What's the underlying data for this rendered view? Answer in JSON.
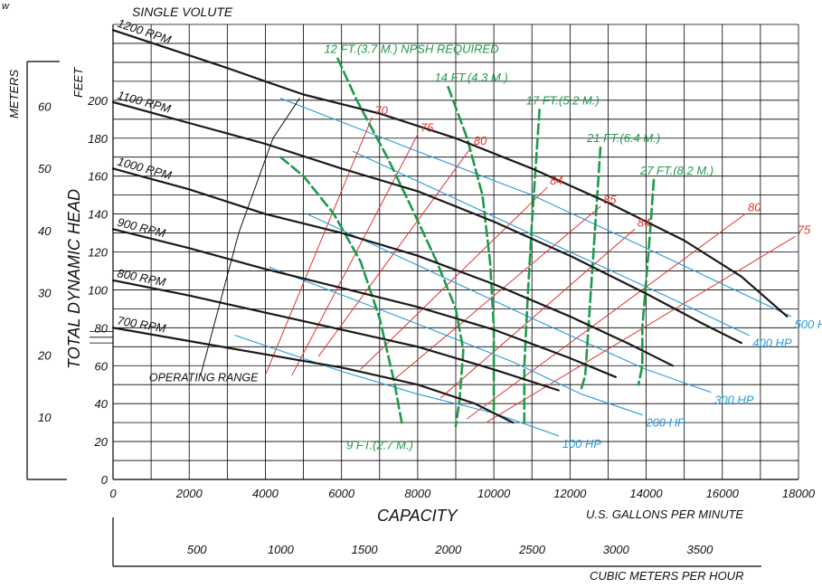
{
  "chart_data": {
    "type": "line",
    "title": "SINGLE VOLUTE",
    "corner_label": "W",
    "xlabel": "CAPACITY",
    "xunit": "U.S. GALLONS PER MINUTE",
    "ylabel": "TOTAL DYNAMIC HEAD",
    "yunit": "FEET",
    "y2unit": "METERS",
    "x2unit": "CUBIC METERS PER HOUR",
    "xlim": [
      0,
      18000
    ],
    "ylim": [
      0,
      240
    ],
    "grid": true,
    "xticks": [
      "0",
      "2000",
      "4000",
      "6000",
      "8000",
      "10000",
      "12000",
      "14000",
      "16000",
      "18000"
    ],
    "yticks": [
      "0",
      "20",
      "40",
      "60",
      "80",
      "100",
      "120",
      "140",
      "160",
      "180",
      "200"
    ],
    "meter_ticks": [
      "10",
      "20",
      "30",
      "40",
      "50",
      "60"
    ],
    "m3h_ticks": [
      "500",
      "1000",
      "1500",
      "2000",
      "2500",
      "3000",
      "3500"
    ],
    "speed_curves": [
      {
        "name": "1200 RPM",
        "points": [
          [
            0,
            237
          ],
          [
            1500,
            227
          ],
          [
            3000,
            217
          ],
          [
            4000,
            210
          ],
          [
            5000,
            203
          ],
          [
            7000,
            193
          ],
          [
            9000,
            180
          ],
          [
            11000,
            164
          ],
          [
            13000,
            146
          ],
          [
            15000,
            126
          ],
          [
            16500,
            107
          ],
          [
            17700,
            86
          ]
        ]
      },
      {
        "name": "1100 RPM",
        "points": [
          [
            0,
            199
          ],
          [
            2000,
            188
          ],
          [
            4000,
            177
          ],
          [
            6000,
            164
          ],
          [
            8000,
            152
          ],
          [
            10000,
            136
          ],
          [
            12000,
            118
          ],
          [
            14000,
            98
          ],
          [
            15500,
            82
          ],
          [
            16500,
            72
          ]
        ]
      },
      {
        "name": "1000 RPM",
        "points": [
          [
            0,
            164
          ],
          [
            2000,
            153
          ],
          [
            4000,
            140
          ],
          [
            6000,
            130
          ],
          [
            8000,
            118
          ],
          [
            10000,
            103
          ],
          [
            12000,
            86
          ],
          [
            13500,
            72
          ],
          [
            14700,
            60
          ]
        ]
      },
      {
        "name": "900 RPM",
        "points": [
          [
            0,
            132
          ],
          [
            2000,
            122
          ],
          [
            4000,
            111
          ],
          [
            6000,
            101
          ],
          [
            8000,
            91
          ],
          [
            10000,
            79
          ],
          [
            12000,
            64
          ],
          [
            13200,
            54
          ]
        ]
      },
      {
        "name": "800 RPM",
        "points": [
          [
            0,
            105
          ],
          [
            2000,
            97
          ],
          [
            4000,
            88
          ],
          [
            6000,
            79
          ],
          [
            8000,
            70
          ],
          [
            10000,
            58
          ],
          [
            11700,
            47
          ]
        ]
      },
      {
        "name": "700 RPM",
        "points": [
          [
            0,
            80
          ],
          [
            2000,
            73
          ],
          [
            4000,
            66
          ],
          [
            6000,
            59
          ],
          [
            8000,
            50
          ],
          [
            9500,
            40
          ],
          [
            10500,
            30
          ]
        ]
      }
    ],
    "horsepower_lines": [
      {
        "name": "100 HP",
        "points": [
          [
            3200,
            76
          ],
          [
            6000,
            57
          ],
          [
            8000,
            45
          ],
          [
            10000,
            35
          ],
          [
            11700,
            23
          ]
        ]
      },
      {
        "name": "200 HP",
        "points": [
          [
            4100,
            112
          ],
          [
            8000,
            82
          ],
          [
            10500,
            62
          ],
          [
            12300,
            45
          ],
          [
            13900,
            34
          ]
        ]
      },
      {
        "name": "300 HP",
        "points": [
          [
            5100,
            140
          ],
          [
            8000,
            113
          ],
          [
            11000,
            85
          ],
          [
            14000,
            58
          ],
          [
            15700,
            46
          ]
        ]
      },
      {
        "name": "400 HP",
        "points": [
          [
            6300,
            173
          ],
          [
            9000,
            148
          ],
          [
            12000,
            120
          ],
          [
            14500,
            97
          ],
          [
            16700,
            76
          ]
        ]
      },
      {
        "name": "500 HP",
        "points": [
          [
            4400,
            201
          ],
          [
            8000,
            173
          ],
          [
            11000,
            150
          ],
          [
            14000,
            122
          ],
          [
            17800,
            86
          ]
        ]
      }
    ],
    "efficiency_lines": [
      {
        "name": "70",
        "points": [
          [
            4000,
            55
          ],
          [
            6800,
            191
          ]
        ]
      },
      {
        "name": "75",
        "points": [
          [
            4700,
            55
          ],
          [
            8000,
            182
          ]
        ]
      },
      {
        "name": "80",
        "points": [
          [
            5400,
            65
          ],
          [
            9400,
            175
          ]
        ]
      },
      {
        "name": "84",
        "points": [
          [
            6500,
            58
          ],
          [
            11400,
            154
          ]
        ]
      },
      {
        "name": "85",
        "points": [
          [
            7400,
            53
          ],
          [
            12800,
            144
          ]
        ]
      },
      {
        "name": "84",
        "points": [
          [
            8600,
            43
          ],
          [
            13700,
            132
          ]
        ]
      },
      {
        "name": "80",
        "points": [
          [
            9300,
            32
          ],
          [
            16600,
            140
          ]
        ]
      },
      {
        "name": "75",
        "points": [
          [
            9800,
            30
          ],
          [
            17900,
            128
          ]
        ]
      }
    ],
    "npsh_curves": [
      {
        "name": "9 FT.(2.7 M.)",
        "points": [
          [
            4400,
            170
          ],
          [
            5000,
            160
          ],
          [
            5800,
            140
          ],
          [
            6500,
            115
          ],
          [
            7000,
            85
          ],
          [
            7400,
            50
          ],
          [
            7600,
            28
          ]
        ]
      },
      {
        "name": "12 FT.(3.7 M.) NPSH REQUIRED",
        "points": [
          [
            5900,
            222
          ],
          [
            6400,
            200
          ],
          [
            7200,
            170
          ],
          [
            7800,
            145
          ],
          [
            8500,
            115
          ],
          [
            9000,
            90
          ],
          [
            9200,
            68
          ],
          [
            9100,
            42
          ],
          [
            9000,
            28
          ]
        ]
      },
      {
        "name": "14 FT.(4.3 M.)",
        "points": [
          [
            8800,
            207
          ],
          [
            9300,
            180
          ],
          [
            9700,
            150
          ],
          [
            9900,
            115
          ],
          [
            10000,
            80
          ],
          [
            10000,
            55
          ],
          [
            10000,
            35
          ]
        ]
      },
      {
        "name": "17 FT.(5.2 M.)",
        "points": [
          [
            11200,
            195
          ],
          [
            11100,
            165
          ],
          [
            11000,
            135
          ],
          [
            10900,
            100
          ],
          [
            10800,
            60
          ],
          [
            10800,
            30
          ]
        ]
      },
      {
        "name": "21 FT.(6.4 M.)",
        "points": [
          [
            12800,
            175
          ],
          [
            12700,
            145
          ],
          [
            12600,
            115
          ],
          [
            12500,
            85
          ],
          [
            12400,
            55
          ],
          [
            12300,
            48
          ]
        ]
      },
      {
        "name": "27 FT.(8.2 M.)",
        "points": [
          [
            14200,
            158
          ],
          [
            14100,
            130
          ],
          [
            14000,
            105
          ],
          [
            13900,
            80
          ],
          [
            13900,
            60
          ],
          [
            13800,
            50
          ]
        ]
      }
    ],
    "operating_range": {
      "name": "OPERATING RANGE",
      "points": [
        [
          2300,
          55
        ],
        [
          3300,
          130
        ],
        [
          4200,
          180
        ],
        [
          4900,
          201
        ]
      ]
    },
    "colors": {
      "speed": "#1a1a1a",
      "horsepower": "#2b9bd6",
      "efficiency": "#e0342c",
      "npsh": "#1e9a4a",
      "grid": "#000000"
    }
  }
}
